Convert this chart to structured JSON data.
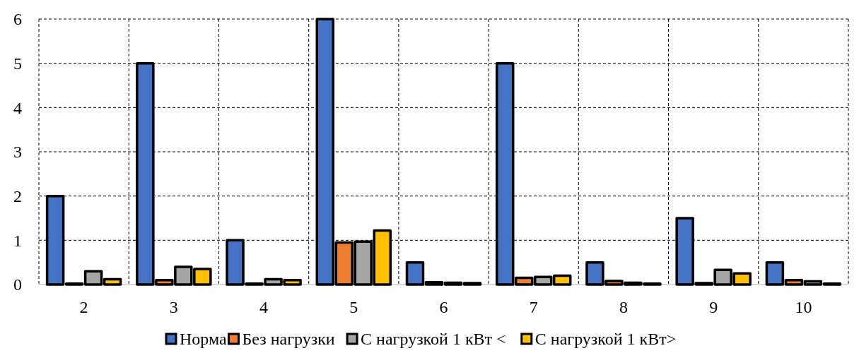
{
  "chart_data": {
    "type": "bar",
    "categories": [
      "2",
      "3",
      "4",
      "5",
      "6",
      "7",
      "8",
      "9",
      "10"
    ],
    "series": [
      {
        "name": "Норма",
        "color": "#4472c4",
        "values": [
          2,
          5,
          1,
          6,
          0.5,
          5,
          0.5,
          1.5,
          0.5
        ]
      },
      {
        "name": "Без нагрузки",
        "color": "#ed7d31",
        "values": [
          0.02,
          0.1,
          0.02,
          0.95,
          0.05,
          0.15,
          0.08,
          0.03,
          0.1
        ]
      },
      {
        "name": "С нагрузкой 1 кВт <",
        "color": "#a5a5a5",
        "values": [
          0.3,
          0.4,
          0.12,
          0.97,
          0.04,
          0.17,
          0.04,
          0.33,
          0.07
        ]
      },
      {
        "name": "С нагрузкой 1 кВт>",
        "color": "#ffc000",
        "values": [
          0.12,
          0.35,
          0.1,
          1.22,
          0.03,
          0.2,
          0.02,
          0.25,
          0.02
        ]
      }
    ],
    "ylim": [
      0,
      6
    ],
    "yticks": [
      0,
      1,
      2,
      3,
      4,
      5,
      6
    ],
    "grid": true,
    "legend": "bottom"
  }
}
